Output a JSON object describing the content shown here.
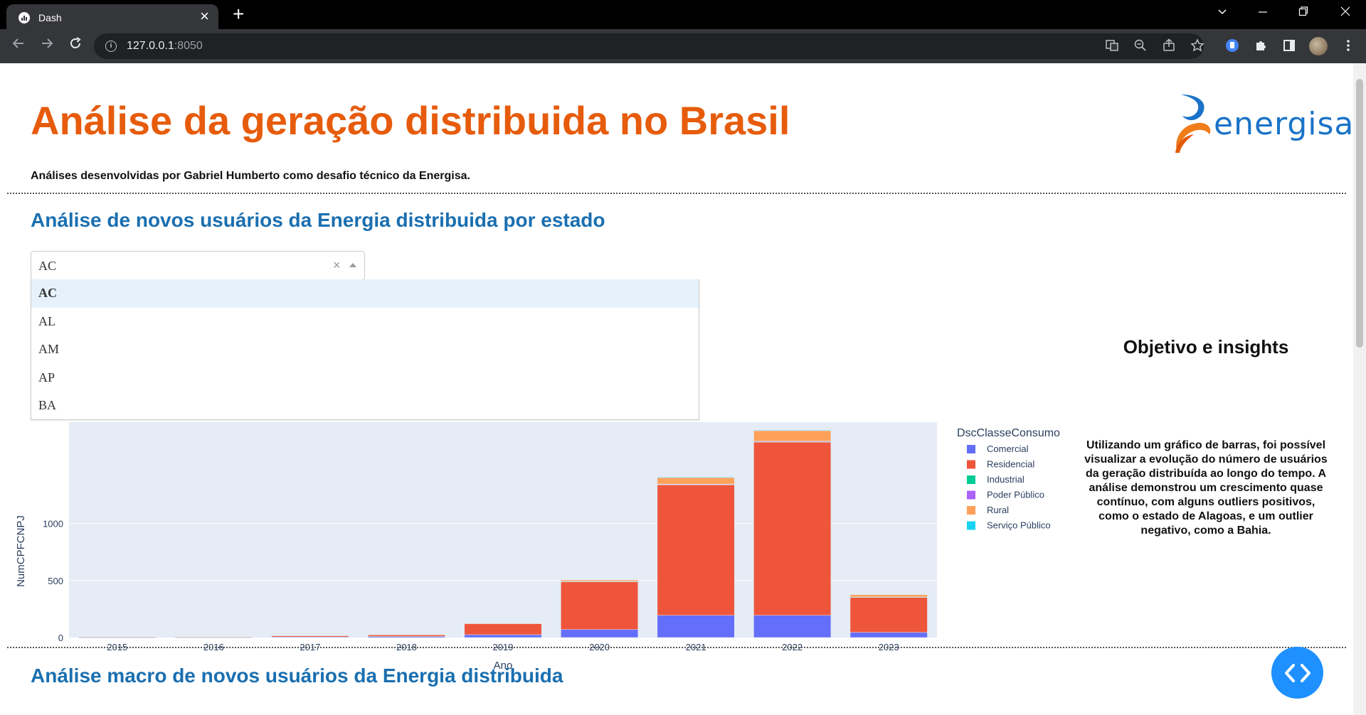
{
  "browser": {
    "tab_title": "Dash",
    "new_tab_icon": "+",
    "tab_close_icon": "×",
    "url_host": "127.0.0.1",
    "url_port": ":8050"
  },
  "header": {
    "title": "Análise da geração distribuida no Brasil",
    "subtitle": "Análises desenvolvidas por Gabriel Humberto como desafio técnico da Energisa.",
    "logo_text": "energisa"
  },
  "section1": {
    "title": "Análise de novos usuários da Energia distribuida por estado",
    "dropdown": {
      "value": "AC",
      "clear_icon": "×",
      "options": [
        "AC",
        "AL",
        "AM",
        "AP",
        "BA"
      ]
    }
  },
  "insights": {
    "title": "Objetivo e insights",
    "text": "Utilizando um gráfico de barras, foi possível visualizar a evolução do número de usuários da geração distribuída ao longo do tempo. A análise demonstrou um crescimento quase contínuo, com alguns outliers positivos, como o estado de Alagoas, e um outlier negativo, como a Bahia."
  },
  "section2": {
    "title": "Análise macro de novos usuários da Energia distribuida"
  },
  "chart_data": {
    "type": "bar",
    "stacked": true,
    "categories": [
      "2015",
      "2016",
      "2017",
      "2018",
      "2019",
      "2020",
      "2021",
      "2022",
      "2023"
    ],
    "series": [
      {
        "name": "Comercial",
        "color": "#636efa",
        "values": [
          2,
          2,
          5,
          10,
          25,
          70,
          195,
          195,
          45
        ]
      },
      {
        "name": "Residencial",
        "color": "#ef553b",
        "values": [
          4,
          3,
          10,
          15,
          95,
          420,
          1145,
          1520,
          310
        ]
      },
      {
        "name": "Industrial",
        "color": "#00cc96",
        "values": [
          0,
          0,
          0,
          0,
          0,
          3,
          5,
          5,
          1
        ]
      },
      {
        "name": "Poder Público",
        "color": "#ab63fa",
        "values": [
          0,
          0,
          0,
          0,
          0,
          0,
          2,
          3,
          0
        ]
      },
      {
        "name": "Rural",
        "color": "#ffa15a",
        "values": [
          0,
          0,
          0,
          2,
          5,
          12,
          60,
          95,
          20
        ]
      },
      {
        "name": "Serviço Público",
        "color": "#19d3f3",
        "values": [
          0,
          0,
          0,
          0,
          0,
          0,
          1,
          2,
          0
        ]
      }
    ],
    "xlabel": "Ano",
    "ylabel": "NumCPFCNPJ",
    "legend_title": "DscClasseConsumo",
    "y_ticks": [
      0,
      500,
      1000
    ],
    "ylim": [
      0,
      1890
    ],
    "grid": true,
    "legend_position": "right"
  }
}
